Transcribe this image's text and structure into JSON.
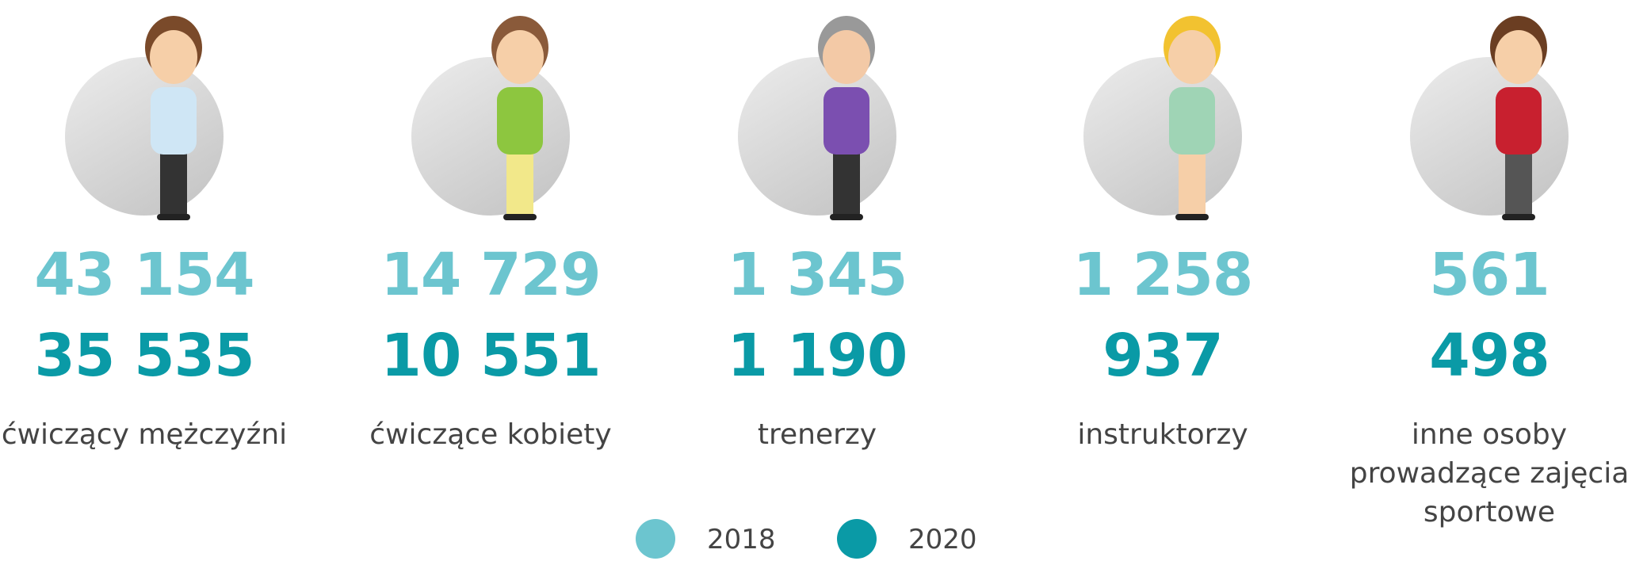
{
  "groups": [
    {
      "label": "ćwiczący mężczyźni",
      "values": [
        "43 154",
        "35 535"
      ]
    },
    {
      "label": "ćwiczące kobiety",
      "values": [
        "14 729",
        "10 551"
      ]
    },
    {
      "label": "trenerzy",
      "values": [
        "1 345",
        "1 190"
      ]
    },
    {
      "label": "instruktorzy",
      "values": [
        "1 258",
        "937"
      ]
    },
    {
      "label": "inne osoby prowadzące zajęcia sportowe",
      "values": [
        "561",
        "498"
      ]
    }
  ],
  "legend": [
    {
      "label": "2018",
      "color": "#6cc5cf"
    },
    {
      "label": "2020",
      "color": "#0a9aa6"
    }
  ]
}
